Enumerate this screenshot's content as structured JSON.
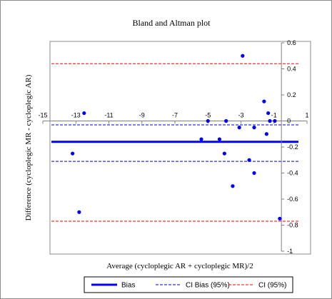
{
  "chart_data": {
    "type": "scatter",
    "title": "Bland and Altman plot",
    "xlabel": "Average (cycloplegic AR + cycloplegic MR)/2",
    "ylabel": "Difference (cycloplegic MR - cycloplegic AR)",
    "xlim": [
      -15,
      1
    ],
    "ylim": [
      -1,
      0.6
    ],
    "x_ticks": [
      -15,
      -13,
      -11,
      -9,
      -7,
      -5,
      -3,
      -1,
      1
    ],
    "x_tick_labels": [
      "-15",
      "-13",
      "-11",
      "-9",
      "-7",
      "-5",
      "-3",
      "-1",
      "1"
    ],
    "y_ticks": [
      0.6,
      0.4,
      0.2,
      0,
      -0.2,
      -0.4,
      -0.6,
      -0.8,
      -1
    ],
    "y_tick_labels": [
      "0.6",
      "0.4",
      "0.2",
      "0",
      "-0.2",
      "-0.4",
      "-0.6",
      "-0.8",
      "-1"
    ],
    "grid": false,
    "legend_position": "bottom",
    "points": [
      {
        "x": -12.5,
        "y": 0.06
      },
      {
        "x": -13.2,
        "y": -0.25
      },
      {
        "x": -12.8,
        "y": -0.7
      },
      {
        "x": -5.0,
        "y": 0.0
      },
      {
        "x": -5.4,
        "y": -0.14
      },
      {
        "x": -4.3,
        "y": -0.14
      },
      {
        "x": -3.9,
        "y": 0.0
      },
      {
        "x": -4.0,
        "y": -0.25
      },
      {
        "x": -3.5,
        "y": -0.5
      },
      {
        "x": -3.1,
        "y": -0.05
      },
      {
        "x": -2.9,
        "y": 0.5
      },
      {
        "x": -2.5,
        "y": -0.3
      },
      {
        "x": -2.2,
        "y": -0.05
      },
      {
        "x": -2.2,
        "y": -0.4
      },
      {
        "x": -1.6,
        "y": 0.15
      },
      {
        "x": -1.45,
        "y": -0.1
      },
      {
        "x": -1.35,
        "y": 0.06
      },
      {
        "x": -1.25,
        "y": 0.0
      },
      {
        "x": -0.95,
        "y": 0.0
      },
      {
        "x": -0.65,
        "y": -0.75
      }
    ],
    "reference_lines": [
      {
        "name": "Bias",
        "y": -0.16,
        "style": "solid",
        "color": "#0000ff"
      },
      {
        "name": "CI Bias (95%)",
        "y": -0.03,
        "style": "dashed",
        "color": "#0000cc"
      },
      {
        "name": "CI Bias (95%)",
        "y": -0.31,
        "style": "dashed",
        "color": "#0000cc"
      },
      {
        "name": "CI (95%)",
        "y": 0.44,
        "style": "dashed",
        "color": "#ff0000"
      },
      {
        "name": "CI (95%)",
        "y": -0.77,
        "style": "dashed",
        "color": "#ff0000"
      }
    ],
    "legend": [
      {
        "label": "Bias",
        "style": "solid",
        "color": "#0000ff"
      },
      {
        "label": "CI Bias (95%)",
        "style": "dashed",
        "color": "#0000cc"
      },
      {
        "label": "CI (95%)",
        "style": "dashed",
        "color": "#ff0000"
      }
    ],
    "colors": {
      "points": "#0000ff",
      "bias": "#0000ff",
      "ci_bias": "#0000cc",
      "ci": "#ff0000",
      "axis": "#808080",
      "frame": "#8c8c8c"
    }
  }
}
